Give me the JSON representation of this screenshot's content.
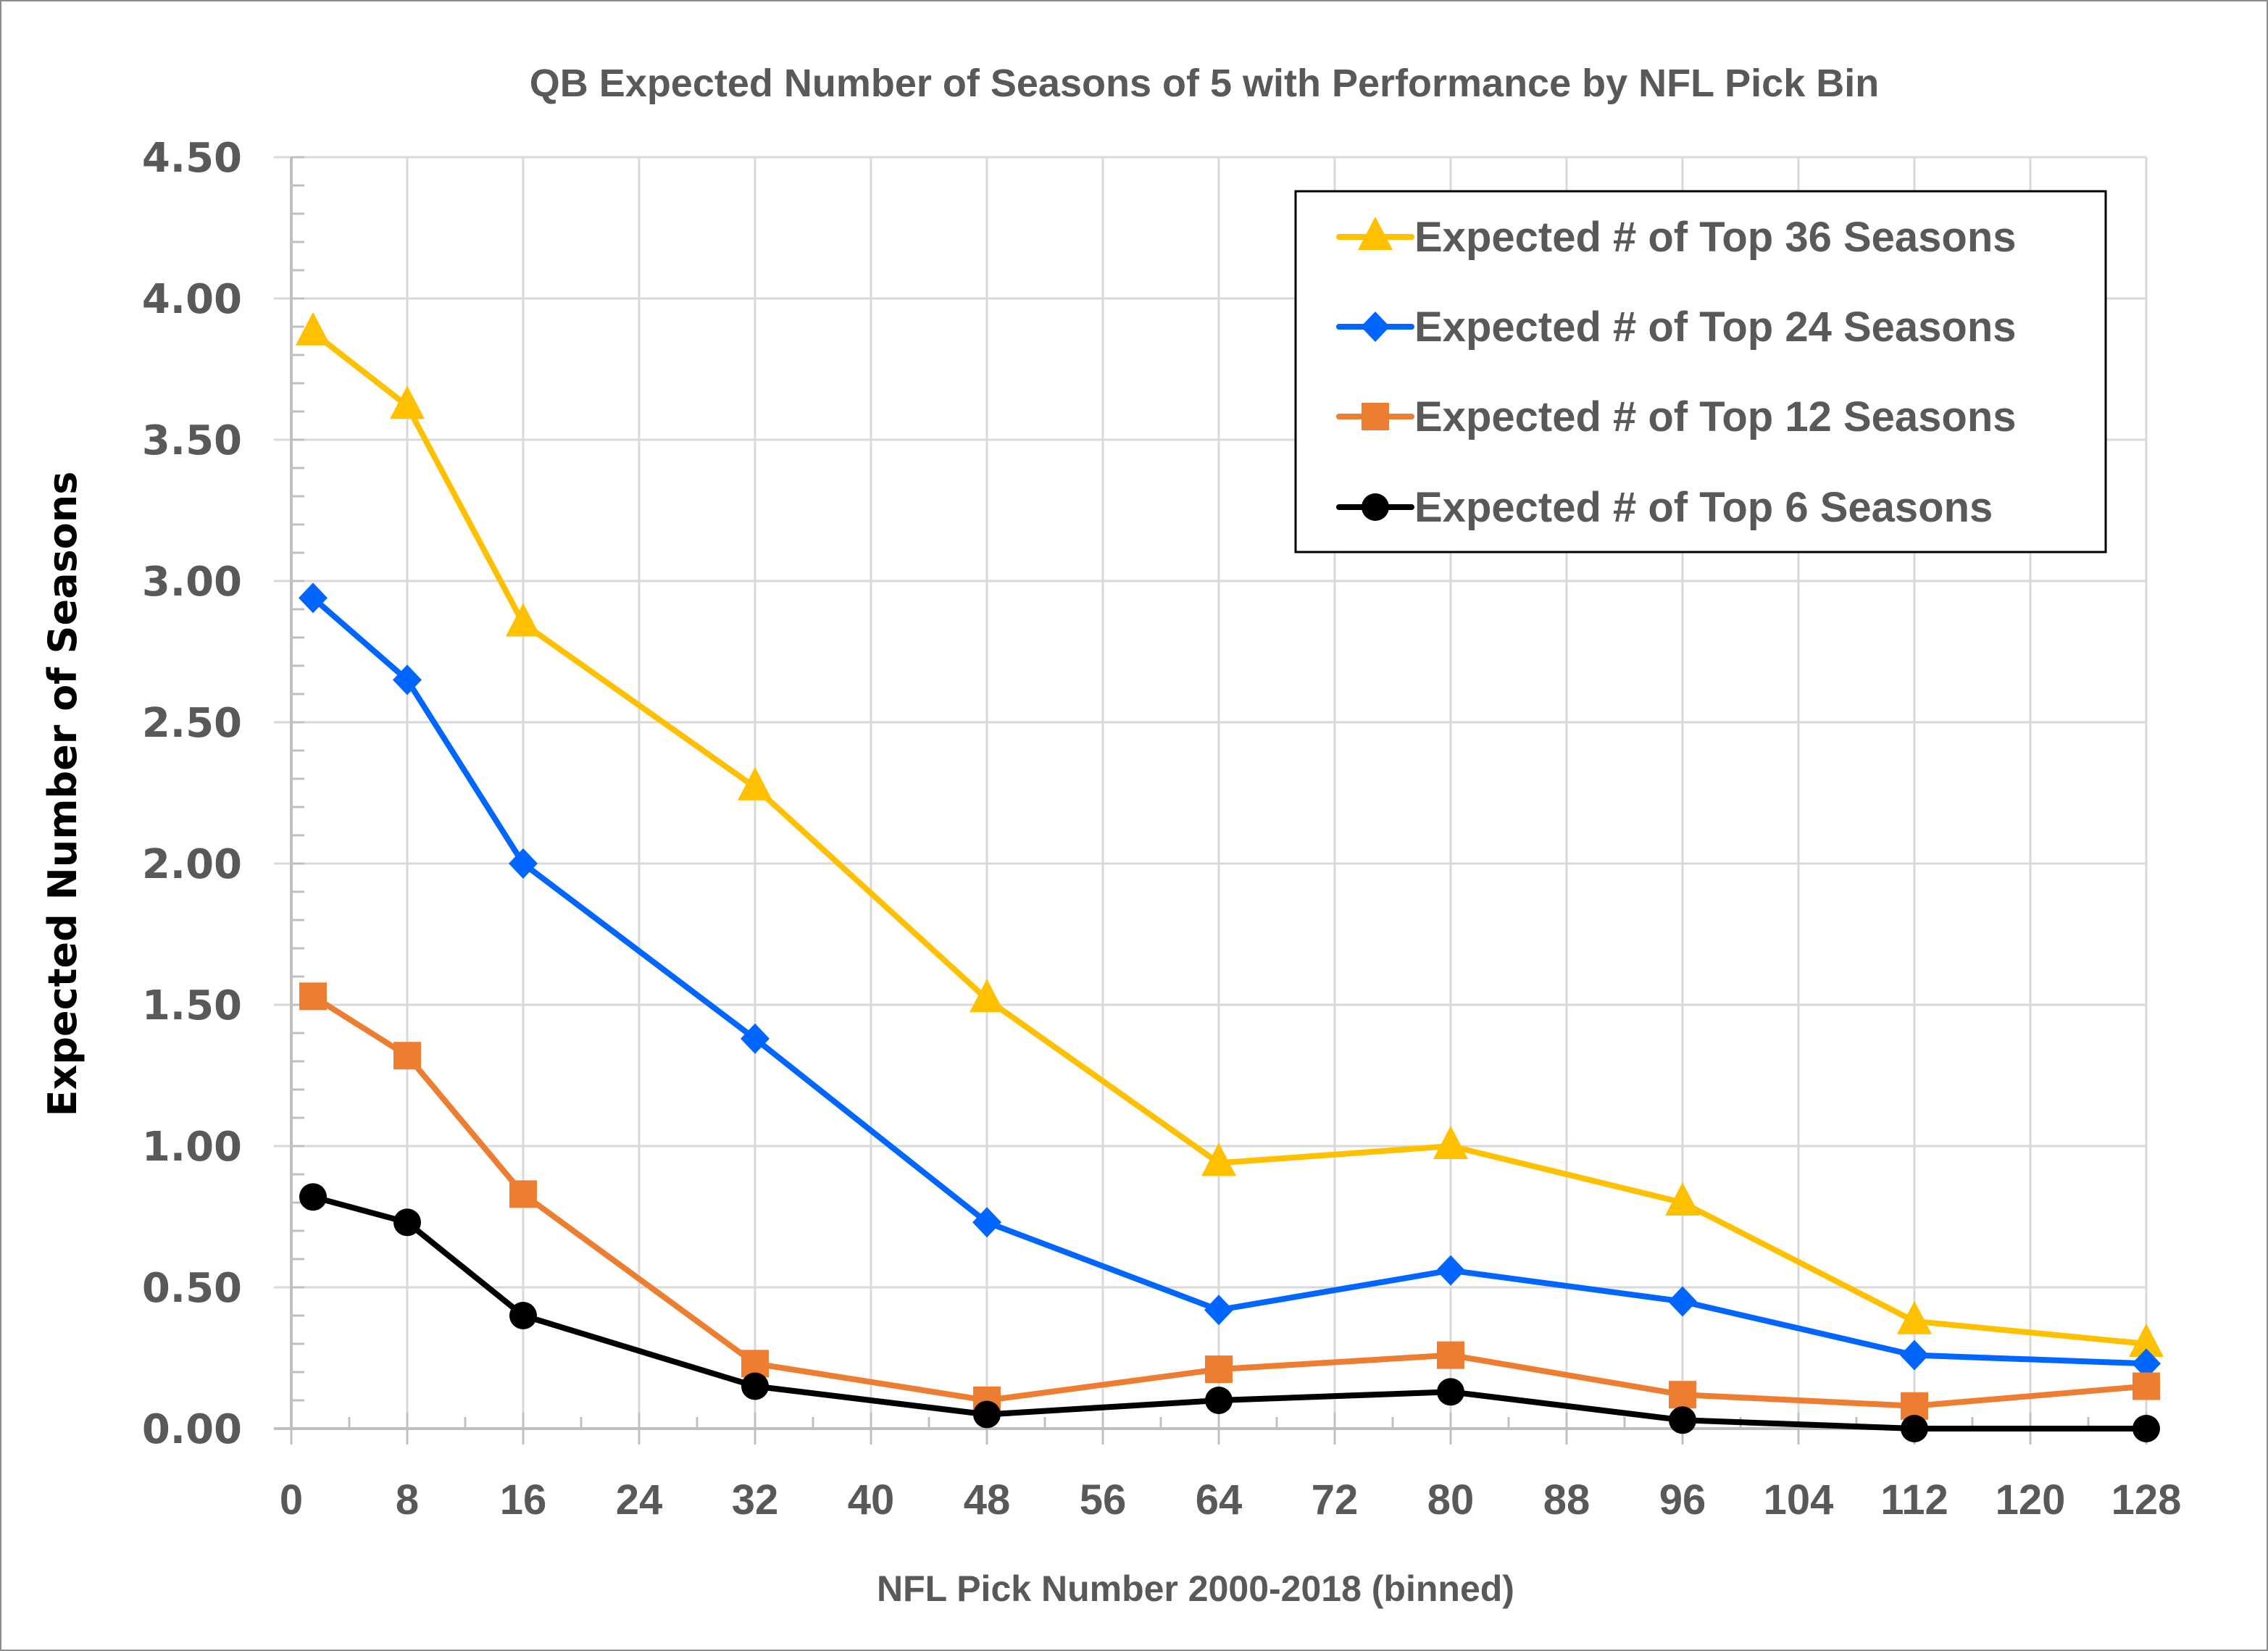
{
  "chart_data": {
    "type": "line",
    "title": "QB Expected Number of Seasons of 5 with Performance by NFL Pick Bin",
    "xlabel": "NFL Pick Number 2000-2018 (binned)",
    "ylabel": "Expected Number of Seasons",
    "xlim": [
      0,
      128
    ],
    "ylim": [
      0,
      4.5
    ],
    "x_ticks": [
      0,
      8,
      16,
      24,
      32,
      40,
      48,
      56,
      64,
      72,
      80,
      88,
      96,
      104,
      112,
      120,
      128
    ],
    "x_tick_labels": [
      "0",
      "8",
      "16",
      "24",
      "32",
      "40",
      "48",
      "56",
      "64",
      "72",
      "80",
      "88",
      "96",
      "104",
      "112",
      "120",
      "128"
    ],
    "y_ticks": [
      0,
      0.5,
      1.0,
      1.5,
      2.0,
      2.5,
      3.0,
      3.5,
      4.0,
      4.5
    ],
    "y_tick_labels": [
      "0.00",
      "0.50",
      "1.00",
      "1.50",
      "2.00",
      "2.50",
      "3.00",
      "3.50",
      "4.00",
      "4.50"
    ],
    "y_minor_step": 0.1,
    "x_minor_step": 4,
    "grid": true,
    "legend_position": "top-right",
    "x": [
      1.5,
      8,
      16,
      32,
      48,
      64,
      80,
      96,
      112,
      128
    ],
    "series": [
      {
        "name": "Expected # of Top 36 Seasons",
        "color": "#FFC000",
        "marker": "triangle",
        "values": [
          3.88,
          3.62,
          2.85,
          2.27,
          1.52,
          0.94,
          1.0,
          0.8,
          0.38,
          0.3
        ]
      },
      {
        "name": "Expected # of Top 24 Seasons",
        "color": "#0066FF",
        "marker": "diamond",
        "values": [
          2.94,
          2.65,
          2.0,
          1.38,
          0.73,
          0.42,
          0.56,
          0.45,
          0.26,
          0.23
        ]
      },
      {
        "name": "Expected # of Top 12 Seasons",
        "color": "#ED7D31",
        "marker": "square",
        "values": [
          1.53,
          1.32,
          0.83,
          0.23,
          0.1,
          0.21,
          0.26,
          0.12,
          0.08,
          0.15
        ]
      },
      {
        "name": "Expected # of Top 6 Seasons",
        "color": "#000000",
        "marker": "circle",
        "values": [
          0.82,
          0.73,
          0.4,
          0.15,
          0.05,
          0.1,
          0.13,
          0.03,
          0.0,
          0.0
        ]
      }
    ]
  }
}
